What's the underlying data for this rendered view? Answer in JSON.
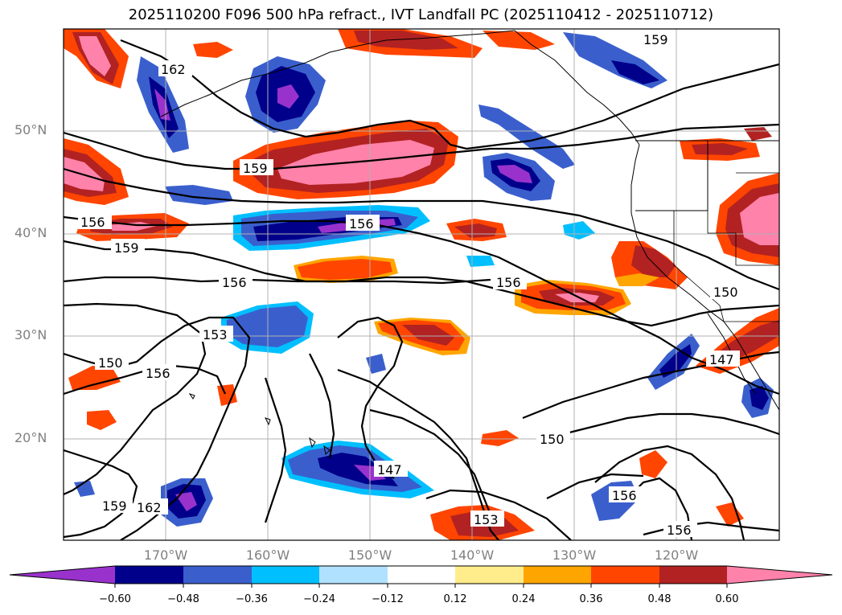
{
  "title": "2025110200 F096 500 hPa refract., IVT Landfall PC (2025110412 - 2025110712)",
  "lat_ticks": [
    "50°N",
    "40°N",
    "30°N",
    "20°N"
  ],
  "lon_ticks": [
    "170°W",
    "160°W",
    "150°W",
    "140°W",
    "130°W",
    "120°W"
  ],
  "colorbar": {
    "ticks": [
      "−0.60",
      "−0.48",
      "−0.36",
      "−0.24",
      "−0.12",
      "0.12",
      "0.24",
      "0.36",
      "0.48",
      "0.60"
    ],
    "colors": [
      "#9932cc",
      "#00008b",
      "#3a5fcd",
      "#00bfff",
      "#b0e2ff",
      "#ffffff",
      "#ffec8b",
      "#ffa500",
      "#ff4500",
      "#b22222",
      "#ff82ab"
    ]
  },
  "contour_labels": [
    "162",
    "162",
    "159",
    "159",
    "159",
    "159",
    "156",
    "156",
    "156",
    "156",
    "156",
    "156",
    "156",
    "153",
    "153",
    "150",
    "150",
    "150",
    "147",
    "147"
  ],
  "colors": {
    "contour": "#000000",
    "grid": "#b0b0b0",
    "tick_text": "#808080"
  }
}
